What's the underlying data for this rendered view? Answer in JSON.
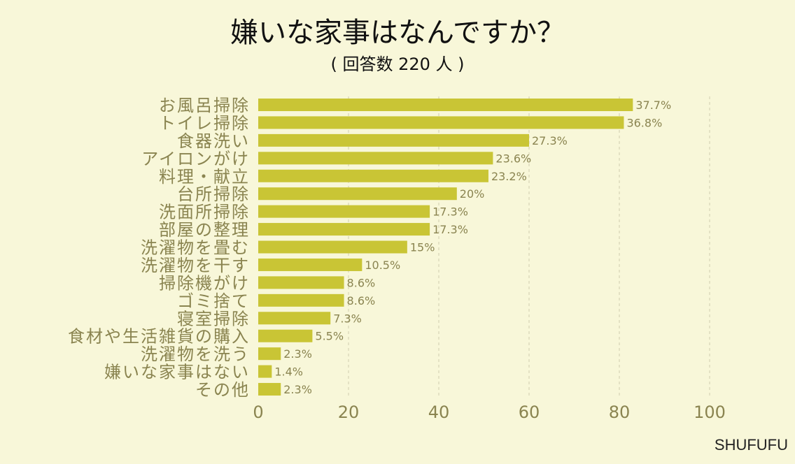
{
  "chart_data": {
    "type": "bar",
    "orientation": "horizontal",
    "title": "嫌いな家事はなんですか？",
    "subtitle": "( 回答数 220 人 )",
    "categories": [
      "お風呂掃除",
      "トイレ掃除",
      "食器洗い",
      "アイロンがけ",
      "料理・献立",
      "台所掃除",
      "洗面所掃除",
      "部屋の整理",
      "洗濯物を畳む",
      "洗濯物を干す",
      "掃除機がけ",
      "ゴミ捨て",
      "寝室掃除",
      "食材や生活雑貨の購入",
      "洗濯物を洗う",
      "嫌いな家事はない",
      "その他"
    ],
    "values": [
      83,
      81,
      60,
      52,
      51,
      44,
      38,
      38,
      33,
      23,
      19,
      19,
      16,
      12,
      5,
      3,
      5
    ],
    "data_labels": [
      "37.7%",
      "36.8%",
      "27.3%",
      "23.6%",
      "23.2%",
      "20%",
      "17.3%",
      "17.3%",
      "15%",
      "10.5%",
      "8.6%",
      "8.6%",
      "7.3%",
      "5.5%",
      "2.3%",
      "1.4%",
      "2.3%"
    ],
    "xlim": [
      0,
      100
    ],
    "xticks": [
      "0",
      "20",
      "40",
      "60",
      "80",
      "100"
    ],
    "grid": true,
    "bar_color": "#c9c535",
    "text_color": "#8a8450"
  },
  "brand": "SHUFUFU"
}
